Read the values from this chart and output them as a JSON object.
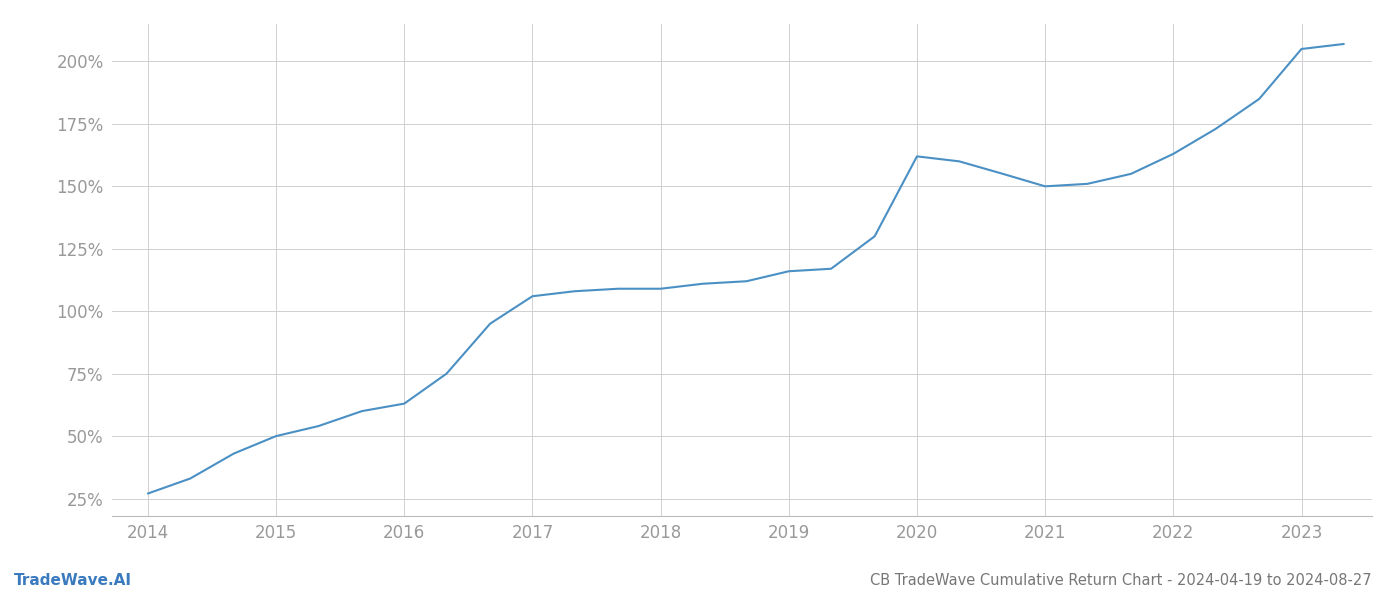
{
  "title": "CB TradeWave Cumulative Return Chart - 2024-04-19 to 2024-08-27",
  "watermark": "TradeWave.AI",
  "line_color": "#4a90c4",
  "background_color": "#ffffff",
  "grid_color": "#d0d0d0",
  "x_values": [
    2014,
    2014.33,
    2014.67,
    2015,
    2015.33,
    2015.67,
    2016,
    2016.33,
    2016.67,
    2017,
    2017.33,
    2017.67,
    2018,
    2018.33,
    2018.67,
    2019,
    2019.33,
    2019.67,
    2020,
    2020.33,
    2020.67,
    2021,
    2021.33,
    2021.67,
    2022,
    2022.33,
    2022.67,
    2023,
    2023.33
  ],
  "y_values": [
    27,
    33,
    43,
    50,
    54,
    60,
    63,
    75,
    95,
    106,
    108,
    109,
    109,
    111,
    112,
    116,
    117,
    130,
    162,
    160,
    155,
    150,
    151,
    155,
    163,
    173,
    185,
    205,
    207
  ],
  "yticks": [
    25,
    50,
    75,
    100,
    125,
    150,
    175,
    200
  ],
  "xticks": [
    2014,
    2015,
    2016,
    2017,
    2018,
    2019,
    2020,
    2021,
    2022,
    2023
  ],
  "ylim": [
    18,
    215
  ],
  "xlim": [
    2013.72,
    2023.55
  ],
  "line_width": 1.5,
  "axis_label_color": "#999999",
  "title_color": "#777777",
  "watermark_color": "#3a7abf",
  "title_fontsize": 10.5,
  "tick_fontsize": 12,
  "watermark_fontsize": 11
}
